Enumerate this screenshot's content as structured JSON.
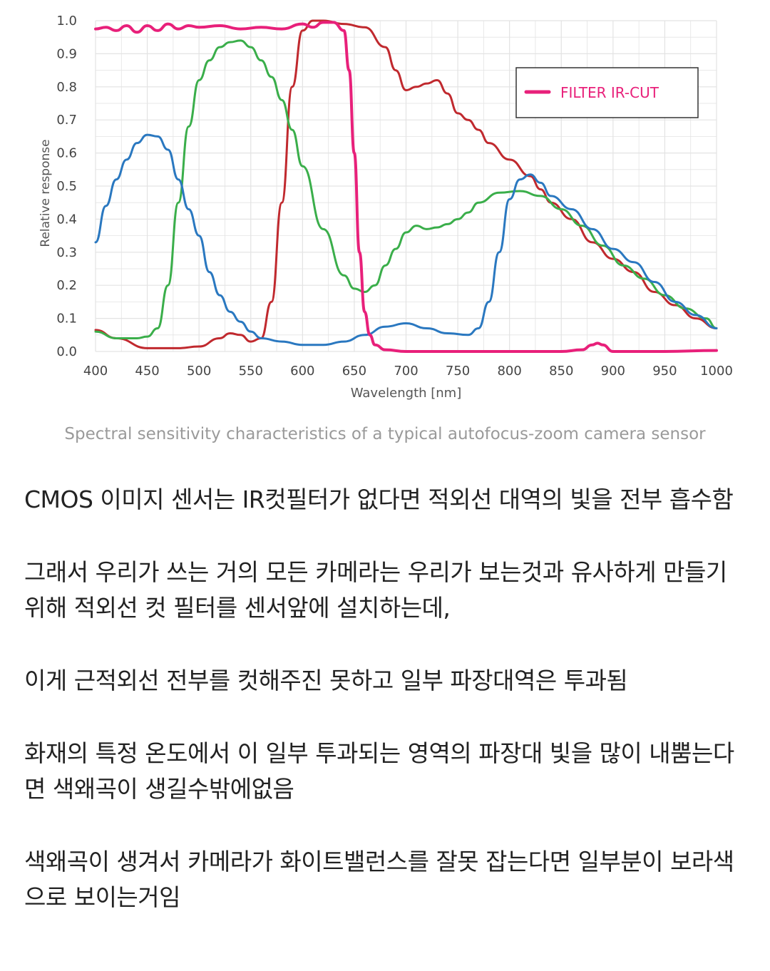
{
  "chart_data": {
    "type": "line",
    "xlabel": "Wavelength [nm]",
    "ylabel": "Relative response",
    "xlim": [
      400,
      1000
    ],
    "ylim": [
      0,
      1.0
    ],
    "xticks": [
      400,
      450,
      500,
      550,
      600,
      650,
      700,
      750,
      800,
      850,
      900,
      950,
      1000
    ],
    "yticks": [
      "0.0",
      "0.1",
      "0.2",
      "0.3",
      "0.4",
      "0.5",
      "0.6",
      "0.7",
      "0.8",
      "0.9",
      "1.0"
    ],
    "grid": true,
    "legend": {
      "position": "top-right",
      "entries": [
        "FILTER IR-CUT"
      ]
    },
    "colors": {
      "filter": "#e8207a",
      "red": "#c0292e",
      "green": "#3aae4a",
      "blue": "#2a78c0",
      "grid": "#e3e3e3"
    },
    "series": [
      {
        "name": "FILTER IR-CUT",
        "color": "#e8207a",
        "x": [
          400,
          410,
          420,
          430,
          440,
          450,
          460,
          470,
          480,
          490,
          500,
          520,
          540,
          560,
          580,
          600,
          610,
          620,
          630,
          640,
          645,
          650,
          655,
          660,
          665,
          670,
          680,
          700,
          750,
          800,
          850,
          870,
          880,
          885,
          890,
          900,
          950,
          1000
        ],
        "y": [
          0.975,
          0.98,
          0.97,
          0.985,
          0.965,
          0.985,
          0.97,
          0.99,
          0.975,
          0.985,
          0.98,
          0.985,
          0.975,
          0.98,
          0.975,
          0.99,
          0.98,
          0.995,
          0.995,
          0.97,
          0.85,
          0.6,
          0.3,
          0.12,
          0.05,
          0.02,
          0.005,
          0.0,
          0.0,
          0.0,
          0.0,
          0.005,
          0.02,
          0.025,
          0.02,
          0.0,
          0.0,
          0.003
        ]
      },
      {
        "color": "#c0292e",
        "x": [
          400,
          420,
          450,
          480,
          500,
          520,
          530,
          540,
          550,
          560,
          570,
          580,
          590,
          600,
          610,
          620,
          640,
          660,
          680,
          690,
          700,
          710,
          720,
          730,
          740,
          750,
          760,
          770,
          780,
          800,
          820,
          830,
          840,
          860,
          880,
          900,
          920,
          940,
          960,
          980,
          1000
        ],
        "y": [
          0.065,
          0.04,
          0.01,
          0.01,
          0.015,
          0.04,
          0.055,
          0.05,
          0.03,
          0.04,
          0.15,
          0.45,
          0.8,
          0.97,
          1.0,
          1.0,
          0.99,
          0.98,
          0.92,
          0.85,
          0.79,
          0.8,
          0.81,
          0.82,
          0.78,
          0.72,
          0.7,
          0.67,
          0.63,
          0.58,
          0.53,
          0.49,
          0.45,
          0.4,
          0.33,
          0.28,
          0.24,
          0.18,
          0.14,
          0.1,
          0.07
        ]
      },
      {
        "color": "#3aae4a",
        "x": [
          400,
          420,
          440,
          450,
          460,
          470,
          480,
          490,
          500,
          510,
          520,
          530,
          540,
          550,
          560,
          570,
          580,
          590,
          600,
          620,
          640,
          650,
          660,
          670,
          680,
          690,
          700,
          710,
          720,
          730,
          740,
          750,
          760,
          770,
          790,
          810,
          830,
          850,
          870,
          890,
          910,
          930,
          950,
          970,
          990,
          1000
        ],
        "y": [
          0.06,
          0.04,
          0.04,
          0.045,
          0.07,
          0.2,
          0.45,
          0.68,
          0.82,
          0.88,
          0.92,
          0.935,
          0.94,
          0.92,
          0.88,
          0.83,
          0.76,
          0.67,
          0.56,
          0.37,
          0.23,
          0.19,
          0.18,
          0.2,
          0.26,
          0.31,
          0.36,
          0.38,
          0.37,
          0.375,
          0.385,
          0.4,
          0.42,
          0.45,
          0.48,
          0.485,
          0.47,
          0.43,
          0.38,
          0.32,
          0.26,
          0.22,
          0.17,
          0.13,
          0.1,
          0.07
        ]
      },
      {
        "color": "#2a78c0",
        "x": [
          400,
          410,
          420,
          430,
          440,
          450,
          460,
          470,
          480,
          490,
          500,
          510,
          520,
          530,
          540,
          550,
          560,
          580,
          600,
          620,
          640,
          660,
          680,
          700,
          720,
          740,
          760,
          770,
          780,
          790,
          800,
          810,
          820,
          830,
          840,
          860,
          880,
          900,
          920,
          940,
          960,
          980,
          1000
        ],
        "y": [
          0.33,
          0.44,
          0.52,
          0.58,
          0.63,
          0.655,
          0.65,
          0.61,
          0.52,
          0.43,
          0.35,
          0.24,
          0.17,
          0.12,
          0.09,
          0.06,
          0.04,
          0.03,
          0.02,
          0.02,
          0.03,
          0.05,
          0.075,
          0.085,
          0.07,
          0.055,
          0.05,
          0.07,
          0.15,
          0.3,
          0.46,
          0.52,
          0.535,
          0.51,
          0.47,
          0.43,
          0.37,
          0.31,
          0.27,
          0.21,
          0.15,
          0.11,
          0.07
        ]
      }
    ]
  },
  "caption": "Spectral sensitivity characteristics of a typical autofocus-zoom camera sensor",
  "paragraphs": [
    "CMOS 이미지 센서는 IR컷필터가 없다면 적외선 대역의 빛을 전부 흡수함",
    "그래서 우리가 쓰는 거의 모든 카메라는 우리가 보는것과 유사하게 만들기 위해 적외선 컷 필터를 센서앞에 설치하는데,",
    "이게 근적외선 전부를 컷해주진 못하고 일부 파장대역은 투과됨",
    "화재의 특정 온도에서 이 일부 투과되는 영역의 파장대 빛을 많이 내뿜는다면 색왜곡이 생길수밖에없음",
    "색왜곡이 생겨서 카메라가 화이트밸런스를 잘못 잡는다면 일부분이 보라색으로 보이는거임"
  ]
}
